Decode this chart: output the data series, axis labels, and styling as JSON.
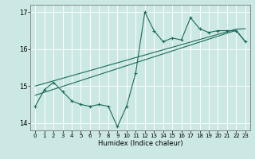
{
  "xlabel": "Humidex (Indice chaleur)",
  "bg_color": "#cce8e4",
  "grid_color": "#ffffff",
  "line_color": "#1a6b5a",
  "x_data": [
    0,
    1,
    2,
    3,
    4,
    5,
    6,
    7,
    8,
    9,
    10,
    11,
    12,
    13,
    14,
    15,
    16,
    17,
    18,
    19,
    20,
    21,
    22,
    23
  ],
  "y_main": [
    14.45,
    14.9,
    15.1,
    14.85,
    14.6,
    14.5,
    14.45,
    14.5,
    14.45,
    13.9,
    14.45,
    15.35,
    17.0,
    16.5,
    16.2,
    16.3,
    16.25,
    16.85,
    16.55,
    16.45,
    16.5,
    16.5,
    16.5,
    16.2
  ],
  "y_trend1": [
    15.0,
    15.07,
    15.14,
    15.21,
    15.28,
    15.35,
    15.42,
    15.49,
    15.56,
    15.63,
    15.7,
    15.77,
    15.84,
    15.91,
    15.98,
    16.05,
    16.12,
    16.19,
    16.26,
    16.33,
    16.4,
    16.47,
    16.54,
    16.55
  ],
  "y_trend2": [
    14.75,
    14.83,
    14.91,
    14.99,
    15.07,
    15.15,
    15.23,
    15.31,
    15.39,
    15.47,
    15.55,
    15.63,
    15.71,
    15.79,
    15.87,
    15.95,
    16.03,
    16.11,
    16.19,
    16.27,
    16.35,
    16.43,
    16.51,
    16.2
  ],
  "ylim": [
    13.8,
    17.2
  ],
  "xlim": [
    -0.5,
    23.5
  ],
  "yticks": [
    14,
    15,
    16,
    17
  ],
  "xticks": [
    0,
    1,
    2,
    3,
    4,
    5,
    6,
    7,
    8,
    9,
    10,
    11,
    12,
    13,
    14,
    15,
    16,
    17,
    18,
    19,
    20,
    21,
    22,
    23
  ]
}
